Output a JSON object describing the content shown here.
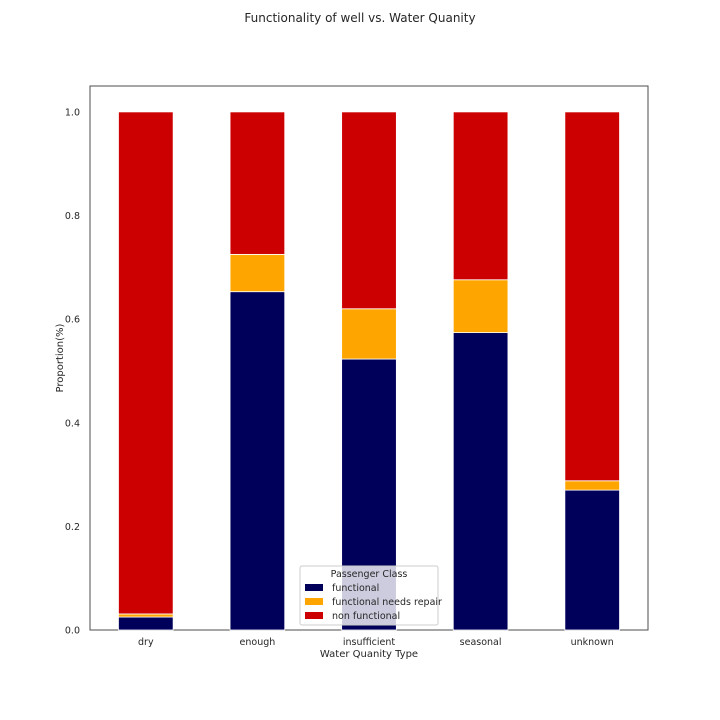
{
  "chart_data": {
    "type": "bar",
    "stacked": true,
    "title": "Functionality of well vs. Water Quanity",
    "xlabel": "Water Quanity Type",
    "ylabel": "Proportion(%)",
    "ylim": [
      0,
      1.05
    ],
    "yticks": [
      "0.0",
      "0.2",
      "0.4",
      "0.6",
      "0.8",
      "1.0"
    ],
    "categories": [
      "dry",
      "enough",
      "insufficient",
      "seasonal",
      "unknown"
    ],
    "series": [
      {
        "name": "functional",
        "color": "#00005a",
        "values": [
          0.025,
          0.653,
          0.523,
          0.574,
          0.27
        ]
      },
      {
        "name": "functional needs repair",
        "color": "#ffa500",
        "values": [
          0.006,
          0.072,
          0.097,
          0.102,
          0.018
        ]
      },
      {
        "name": "non functional",
        "color": "#cc0000",
        "values": [
          0.969,
          0.275,
          0.38,
          0.324,
          0.712
        ]
      }
    ],
    "legend": {
      "title": "Passenger Class",
      "position": "lower-center"
    },
    "grid": false
  }
}
